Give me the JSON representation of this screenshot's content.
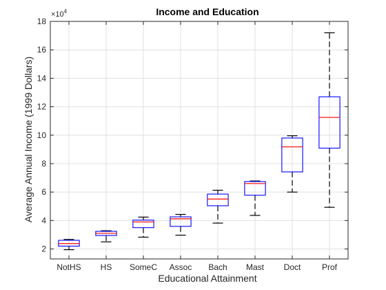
{
  "chart_data": {
    "type": "box",
    "title": "Income  and  Education",
    "xlabel": "Educational Attainment",
    "ylabel": "Average Annual Income  (1999 Dollars)",
    "y_exponent_label": "×10",
    "y_exponent_power": "4",
    "y_tick_values": [
      20000,
      40000,
      60000,
      80000,
      100000,
      120000,
      140000,
      160000,
      180000
    ],
    "y_tick_labels": [
      "2",
      "4",
      "6",
      "8",
      "10",
      "12",
      "14",
      "16",
      "18"
    ],
    "ylim": [
      13000,
      180000
    ],
    "grid": true,
    "categories": [
      "NotHS",
      "HS",
      "SomeC",
      "Assoc",
      "Bach",
      "Mast",
      "Doct",
      "Prof"
    ],
    "boxes": [
      {
        "category": "NotHS",
        "whisker_low": 19500,
        "q1": 22000,
        "median": 23800,
        "q3": 26100,
        "whisker_high": 26700
      },
      {
        "category": "HS",
        "whisker_low": 25000,
        "q1": 29500,
        "median": 31000,
        "q3": 32400,
        "whisker_high": 32800
      },
      {
        "category": "SomeC",
        "whisker_low": 28300,
        "q1": 35000,
        "median": 39000,
        "q3": 40300,
        "whisker_high": 42400
      },
      {
        "category": "Assoc",
        "whisker_low": 29700,
        "q1": 35900,
        "median": 41200,
        "q3": 42600,
        "whisker_high": 44300
      },
      {
        "category": "Bach",
        "whisker_low": 38200,
        "q1": 50400,
        "median": 55100,
        "q3": 58600,
        "whisker_high": 61300
      },
      {
        "category": "Mast",
        "whisker_low": 43600,
        "q1": 57800,
        "median": 66000,
        "q3": 67400,
        "whisker_high": 67800
      },
      {
        "category": "Doct",
        "whisker_low": 60000,
        "q1": 74200,
        "median": 91800,
        "q3": 98000,
        "whisker_high": 99600
      },
      {
        "category": "Prof",
        "whisker_low": 49300,
        "q1": 90900,
        "median": 112500,
        "q3": 127000,
        "whisker_high": 172000
      }
    ],
    "colors": {
      "box": "#0000ff",
      "median": "#ff0000",
      "whisker": "#000000",
      "grid": "#e0e0e0",
      "axis": "#262626"
    }
  }
}
